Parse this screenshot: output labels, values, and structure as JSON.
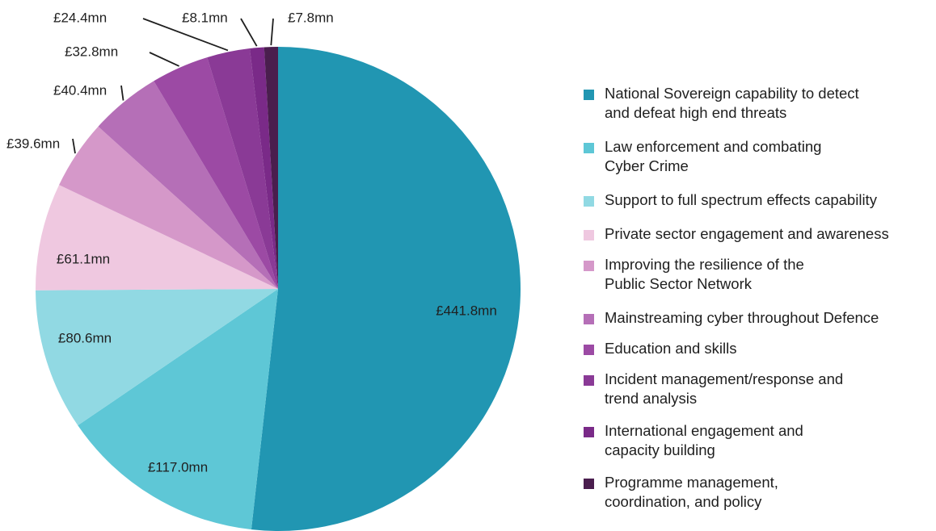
{
  "chart_data": {
    "type": "pie",
    "unit": "mn",
    "slices": [
      {
        "label": "National Sovereign capability to detect\nand defeat high end threats",
        "value": 441.8,
        "value_label": "£441.8mn",
        "color": "#2196b2"
      },
      {
        "label": "Law enforcement and combating\nCyber Crime",
        "value": 117.0,
        "value_label": "£117.0mn",
        "color": "#5ec7d6"
      },
      {
        "label": "Support to full spectrum effects capability",
        "value": 80.6,
        "value_label": "£80.6mn",
        "color": "#91d9e3"
      },
      {
        "label": "Private sector engagement and awareness",
        "value": 61.1,
        "value_label": "£61.1mn",
        "color": "#efc8e0"
      },
      {
        "label": "Improving the resilience of the\nPublic Sector Network",
        "value": 39.6,
        "value_label": "£39.6mn",
        "color": "#d598c9"
      },
      {
        "label": "Mainstreaming cyber throughout Defence",
        "value": 40.4,
        "value_label": "£40.4mn",
        "color": "#b56fb7"
      },
      {
        "label": "Education and skills",
        "value": 32.8,
        "value_label": "£32.8mn",
        "color": "#9c4aa4"
      },
      {
        "label": "Incident management/response and\ntrend analysis",
        "value": 24.4,
        "value_label": "£24.4mn",
        "color": "#8a3a96"
      },
      {
        "label": "International engagement and\ncapacity building",
        "value": 8.1,
        "value_label": "£8.1mn",
        "color": "#7a2a88"
      },
      {
        "label": "Programme management,\ncoordination, and policy",
        "value": 7.8,
        "value_label": "£7.8mn",
        "color": "#4a1e4e"
      }
    ],
    "legend_position": "right"
  }
}
